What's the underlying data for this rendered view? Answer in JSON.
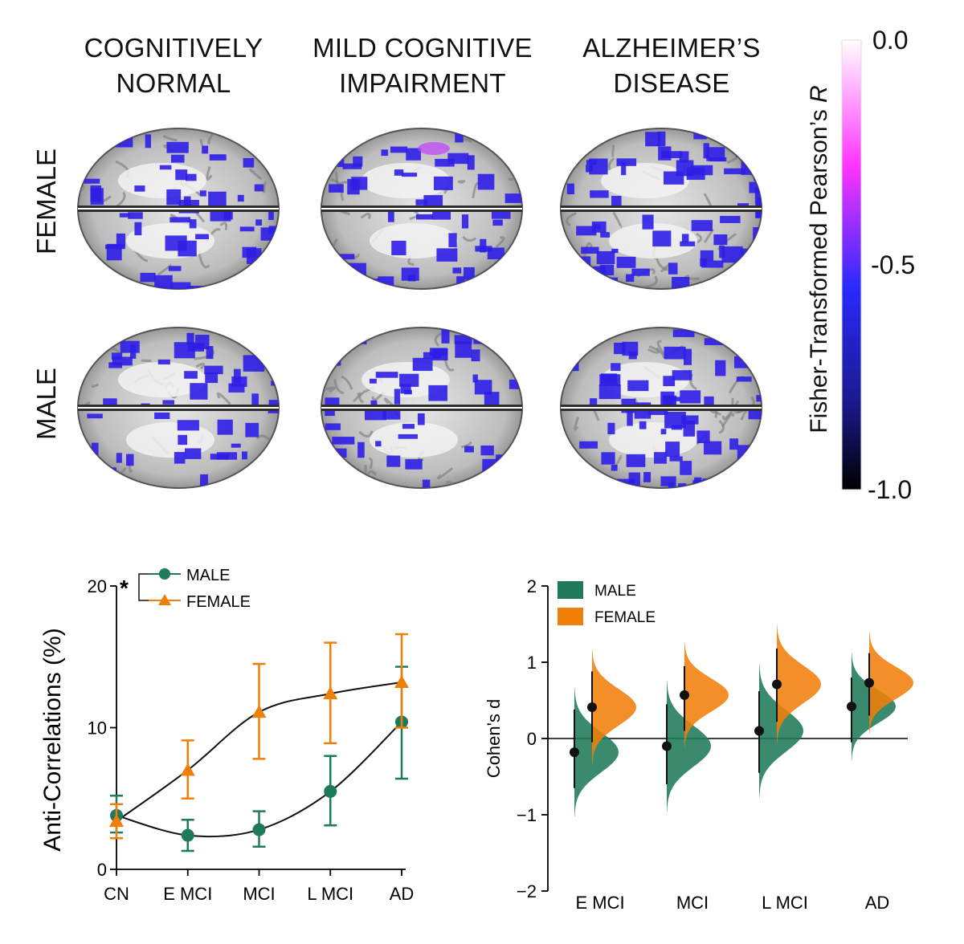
{
  "figure": {
    "columns": [
      "COGNITIVELY\nNORMAL",
      "MILD COGNITIVE\nIMPAIRMENT",
      "ALZHEIMER’S\nDISEASE"
    ],
    "column_lines": [
      [
        "COGNITIVELY",
        "NORMAL"
      ],
      [
        "MILD COGNITIVE",
        "IMPAIRMENT"
      ],
      [
        "ALZHEIMER’S",
        "DISEASE"
      ]
    ],
    "rows": [
      "FEMALE",
      "MALE"
    ],
    "colorbar": {
      "title": "Fisher-Transformed Pearson’s ",
      "title_italic": "R",
      "ticks": [
        "0.0",
        "-0.5",
        "-1.0"
      ],
      "range": [
        -1.0,
        0.0
      ],
      "colors": [
        "#ffffff",
        "#ff33ff",
        "#2222ff",
        "#000000"
      ]
    },
    "brain_colors": {
      "tissue": "#b8b8b8",
      "highlight": "#2d1ee6"
    }
  },
  "chart_data": [
    {
      "type": "line",
      "ylabel": "Anti-Correlations (%)",
      "xlabel": "",
      "categories": [
        "CN",
        "E MCI",
        "MCI",
        "L MCI",
        "AD"
      ],
      "ylim": [
        0,
        20
      ],
      "yticks": [
        "0",
        "10",
        "20"
      ],
      "significance": "*",
      "series": [
        {
          "name": "MALE",
          "marker": "circle",
          "color": "#1f7a5a",
          "values": [
            3.8,
            2.4,
            2.8,
            5.5,
            10.4
          ],
          "err_low": [
            2.6,
            1.3,
            1.6,
            3.1,
            6.4
          ],
          "err_high": [
            5.2,
            3.5,
            4.1,
            8.0,
            14.3
          ]
        },
        {
          "name": "FEMALE",
          "marker": "triangle",
          "color": "#f07f0a",
          "values": [
            3.4,
            7.0,
            11.1,
            12.4,
            13.2
          ],
          "err_low": [
            2.2,
            5.0,
            7.8,
            8.9,
            10.0
          ],
          "err_high": [
            4.6,
            9.1,
            14.5,
            16.0,
            16.6
          ]
        }
      ]
    },
    {
      "type": "area",
      "ylabel": "Cohen's d",
      "xlabel": "",
      "categories": [
        "E MCI",
        "MCI",
        "L MCI",
        "AD"
      ],
      "ylim": [
        -2,
        2
      ],
      "yticks": [
        "−2",
        "−1",
        "0",
        "1",
        "2"
      ],
      "series": [
        {
          "name": "MALE",
          "color": "#1f7a5a",
          "values": [
            -0.18,
            -0.1,
            0.1,
            0.42
          ],
          "ci_low": [
            -0.65,
            -0.6,
            -0.45,
            -0.05
          ],
          "ci_high": [
            0.38,
            0.45,
            0.62,
            0.8
          ]
        },
        {
          "name": "FEMALE",
          "color": "#f07f0a",
          "values": [
            0.41,
            0.57,
            0.71,
            0.73
          ],
          "ci_low": [
            -0.05,
            0.1,
            0.22,
            0.3
          ],
          "ci_high": [
            0.88,
            0.95,
            1.18,
            1.12
          ]
        }
      ]
    }
  ]
}
